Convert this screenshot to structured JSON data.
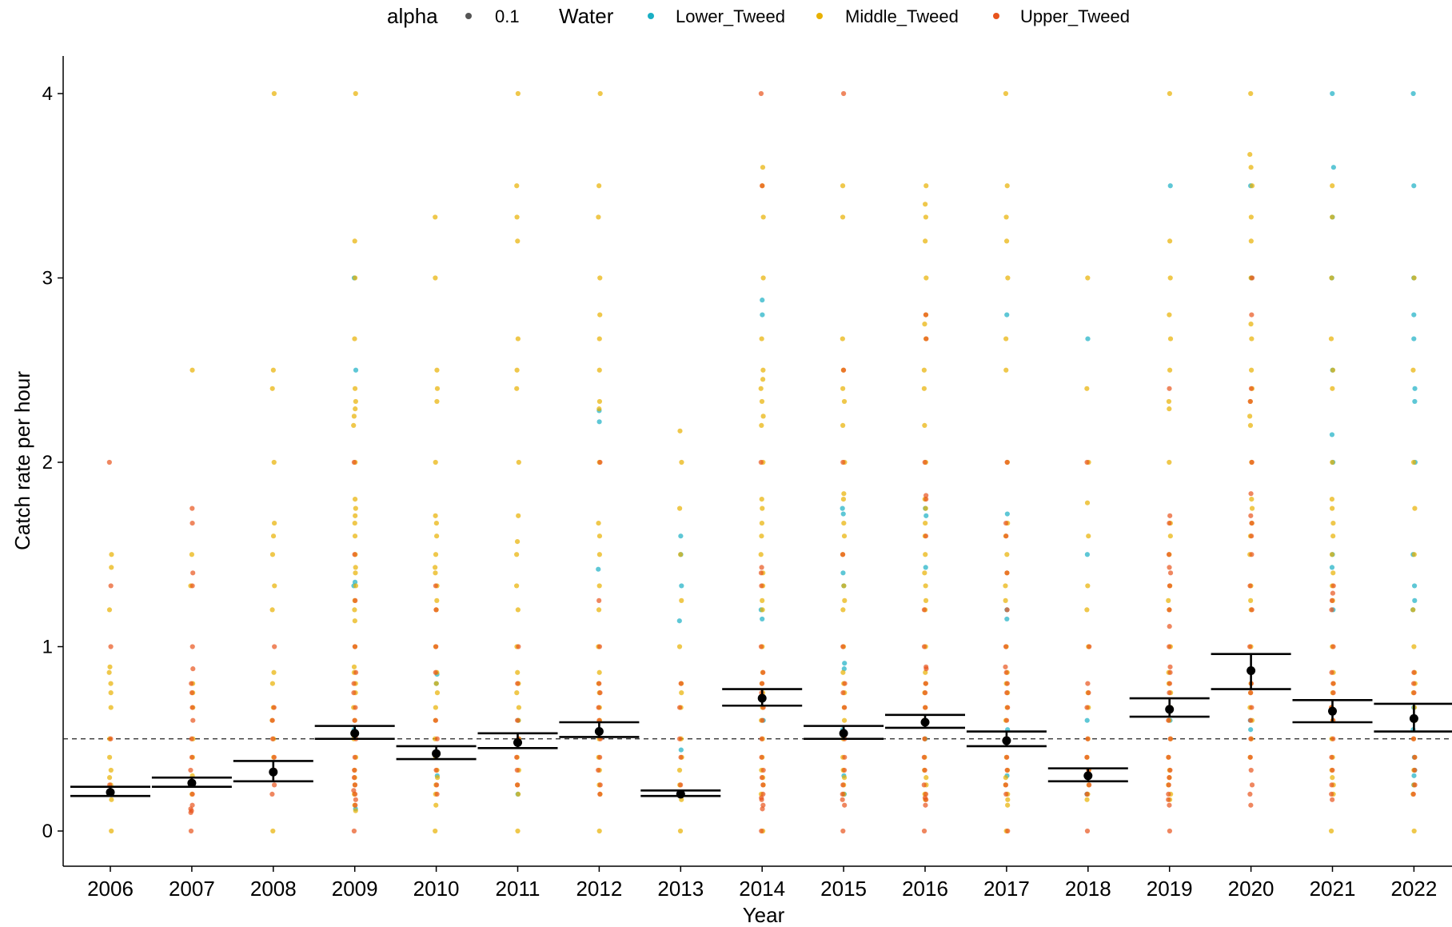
{
  "chart_data": {
    "type": "scatter",
    "title": "",
    "xlabel": "Year",
    "ylabel": "Catch rate per hour",
    "categories": [
      "2006",
      "2007",
      "2008",
      "2009",
      "2010",
      "2011",
      "2012",
      "2013",
      "2014",
      "2015",
      "2016",
      "2017",
      "2018",
      "2019",
      "2020",
      "2021",
      "2022"
    ],
    "y_ticks": [
      "0",
      "1",
      "2",
      "3",
      "4"
    ],
    "ylim": [
      -0.19,
      4.2
    ],
    "grid": false,
    "reference_line": {
      "y": 0.5,
      "style": "dashed"
    },
    "legend": {
      "position": "top",
      "alpha_title": "alpha",
      "alpha_value": "0.1",
      "water_title": "Water",
      "entries": [
        {
          "name": "Lower_Tweed",
          "color": "#1AAFC4"
        },
        {
          "name": "Middle_Tweed",
          "color": "#E8B100"
        },
        {
          "name": "Upper_Tweed",
          "color": "#E8541C"
        }
      ]
    },
    "summary": {
      "means": [
        0.21,
        0.26,
        0.32,
        0.53,
        0.42,
        0.48,
        0.54,
        0.2,
        0.72,
        0.53,
        0.59,
        0.49,
        0.3,
        0.66,
        0.87,
        0.65,
        0.61
      ],
      "lower": [
        0.19,
        0.24,
        0.27,
        0.5,
        0.39,
        0.45,
        0.51,
        0.19,
        0.68,
        0.5,
        0.56,
        0.46,
        0.27,
        0.62,
        0.77,
        0.59,
        0.54
      ],
      "upper": [
        0.24,
        0.29,
        0.38,
        0.57,
        0.46,
        0.53,
        0.59,
        0.22,
        0.77,
        0.57,
        0.63,
        0.54,
        0.34,
        0.72,
        0.96,
        0.71,
        0.69
      ]
    },
    "series": [
      {
        "name": "Lower_Tweed",
        "color": "#1AAFC4",
        "values": [
          [],
          [],
          [],
          [
            3.0,
            2.5,
            1.35,
            1.33,
            0.55,
            0.12
          ],
          [
            0.85,
            0.8,
            0.3
          ],
          [
            0.6,
            0.2
          ],
          [
            2.28,
            2.22,
            1.42,
            0.55
          ],
          [
            1.6,
            1.5,
            1.33,
            1.14,
            0.44,
            0.2
          ],
          [
            2.88,
            2.8,
            1.2,
            1.15,
            0.6
          ],
          [
            1.75,
            1.72,
            1.4,
            1.33,
            0.91,
            0.88,
            0.55,
            0.3,
            0.2
          ],
          [
            1.75,
            1.71,
            1.43,
            0.6,
            0.5
          ],
          [
            2.8,
            1.72,
            1.2,
            1.15,
            0.55,
            0.3
          ],
          [
            2.67,
            1.5,
            0.6,
            0.2
          ],
          [
            3.5,
            0.6
          ],
          [
            3.5,
            3.0,
            0.6,
            0.55
          ],
          [
            4.0,
            3.6,
            3.33,
            3.0,
            2.5,
            2.15,
            2.0,
            1.5,
            1.43,
            1.2
          ],
          [
            4.0,
            3.5,
            3.0,
            2.8,
            2.67,
            2.4,
            2.33,
            2.0,
            1.5,
            1.33,
            1.25,
            1.2,
            0.67,
            0.55,
            0.4,
            0.33,
            0.3,
            0.25
          ]
        ]
      },
      {
        "name": "Middle_Tweed",
        "color": "#E8B100",
        "values": [
          [
            1.5,
            1.43,
            1.2,
            0.89,
            0.86,
            0.8,
            0.75,
            0.67,
            0.5,
            0.4,
            0.33,
            0.29,
            0.25,
            0.2,
            0.17,
            0.0
          ],
          [
            2.5,
            1.5,
            1.33,
            0.8,
            0.75,
            0.67,
            0.5,
            0.4,
            0.3,
            0.25,
            0.2
          ],
          [
            4.0,
            2.5,
            2.4,
            2.0,
            1.67,
            1.6,
            1.5,
            1.33,
            1.2,
            0.86,
            0.8,
            0.67,
            0.6,
            0.5,
            0.4,
            0.33,
            0.0
          ],
          [
            4.0,
            3.2,
            3.0,
            2.67,
            2.4,
            2.33,
            2.29,
            2.25,
            2.2,
            2.0,
            1.8,
            1.75,
            1.71,
            1.67,
            1.6,
            1.5,
            1.43,
            1.4,
            1.33,
            1.25,
            1.2,
            1.14,
            1.0,
            0.89,
            0.86,
            0.8,
            0.75,
            0.67,
            0.6,
            0.5,
            0.4,
            0.33,
            0.29,
            0.25,
            0.2,
            0.14,
            0.11
          ],
          [
            3.33,
            3.0,
            2.5,
            2.4,
            2.33,
            2.0,
            1.71,
            1.67,
            1.6,
            1.5,
            1.43,
            1.4,
            1.33,
            1.25,
            1.2,
            1.0,
            0.86,
            0.8,
            0.75,
            0.67,
            0.6,
            0.5,
            0.4,
            0.33,
            0.29,
            0.25,
            0.2,
            0.14,
            0.0
          ],
          [
            4.0,
            3.5,
            3.33,
            3.2,
            2.67,
            2.5,
            2.4,
            2.0,
            1.71,
            1.57,
            1.5,
            1.33,
            1.2,
            1.0,
            0.86,
            0.8,
            0.75,
            0.67,
            0.6,
            0.5,
            0.4,
            0.33,
            0.25,
            0.2,
            0.0
          ],
          [
            4.0,
            3.5,
            3.33,
            3.0,
            2.8,
            2.67,
            2.5,
            2.33,
            2.29,
            2.0,
            1.67,
            1.6,
            1.5,
            1.33,
            1.2,
            1.0,
            0.86,
            0.8,
            0.75,
            0.67,
            0.6,
            0.5,
            0.4,
            0.33,
            0.25,
            0.2,
            0.0
          ],
          [
            2.17,
            2.0,
            1.75,
            1.5,
            1.25,
            1.0,
            0.8,
            0.75,
            0.67,
            0.5,
            0.4,
            0.33,
            0.25,
            0.2,
            0.17,
            0.0
          ],
          [
            3.6,
            3.5,
            3.33,
            3.0,
            2.67,
            2.5,
            2.45,
            2.4,
            2.33,
            2.25,
            2.2,
            2.0,
            1.8,
            1.75,
            1.67,
            1.6,
            1.5,
            1.4,
            1.33,
            1.25,
            1.2,
            1.0,
            0.86,
            0.8,
            0.75,
            0.67,
            0.6,
            0.5,
            0.4,
            0.33,
            0.29,
            0.25,
            0.2,
            0.0
          ],
          [
            3.5,
            3.33,
            2.67,
            2.5,
            2.4,
            2.33,
            2.2,
            2.0,
            1.83,
            1.8,
            1.67,
            1.6,
            1.5,
            1.33,
            1.25,
            1.2,
            1.0,
            0.86,
            0.8,
            0.75,
            0.67,
            0.6,
            0.5,
            0.4,
            0.33,
            0.29,
            0.25,
            0.2
          ],
          [
            3.5,
            3.4,
            3.33,
            3.2,
            3.0,
            2.8,
            2.75,
            2.67,
            2.5,
            2.4,
            2.2,
            2.0,
            1.8,
            1.75,
            1.67,
            1.6,
            1.5,
            1.4,
            1.33,
            1.25,
            1.2,
            1.0,
            0.86,
            0.8,
            0.75,
            0.67,
            0.6,
            0.5,
            0.4,
            0.33,
            0.29,
            0.25,
            0.2,
            0.17
          ],
          [
            4.0,
            3.5,
            3.33,
            3.2,
            3.0,
            2.67,
            2.5,
            2.0,
            1.67,
            1.6,
            1.5,
            1.4,
            1.33,
            1.25,
            1.0,
            0.86,
            0.8,
            0.75,
            0.67,
            0.6,
            0.5,
            0.4,
            0.33,
            0.29,
            0.25,
            0.2,
            0.17,
            0.14,
            0.0
          ],
          [
            3.0,
            2.4,
            2.0,
            1.78,
            1.6,
            1.33,
            1.2,
            1.0,
            0.75,
            0.67,
            0.5,
            0.4,
            0.33,
            0.29,
            0.25,
            0.2,
            0.17
          ],
          [
            4.0,
            3.2,
            3.0,
            2.8,
            2.67,
            2.5,
            2.33,
            2.29,
            2.0,
            1.67,
            1.6,
            1.5,
            1.33,
            1.25,
            1.2,
            1.0,
            0.86,
            0.8,
            0.75,
            0.67,
            0.6,
            0.5,
            0.4,
            0.33,
            0.29,
            0.25,
            0.2,
            0.17
          ],
          [
            4.0,
            3.67,
            3.6,
            3.5,
            3.33,
            3.2,
            3.0,
            2.75,
            2.67,
            2.5,
            2.4,
            2.33,
            2.25,
            2.2,
            2.0,
            1.8,
            1.75,
            1.67,
            1.6,
            1.5,
            1.33,
            1.25,
            1.2,
            1.0,
            0.86,
            0.8,
            0.75,
            0.67,
            0.6,
            0.5,
            0.4
          ],
          [
            3.5,
            3.33,
            3.0,
            2.67,
            2.5,
            2.4,
            2.0,
            1.8,
            1.75,
            1.67,
            1.6,
            1.5,
            1.4,
            1.33,
            1.25,
            1.0,
            0.86,
            0.8,
            0.75,
            0.67,
            0.6,
            0.5,
            0.4,
            0.33,
            0.29,
            0.25,
            0.2,
            0.0
          ],
          [
            3.0,
            2.5,
            2.0,
            1.75,
            1.5,
            1.2,
            1.0,
            0.86,
            0.8,
            0.75,
            0.67,
            0.6,
            0.5,
            0.4,
            0.33,
            0.25,
            0.2,
            0.0
          ]
        ]
      },
      {
        "name": "Upper_Tweed",
        "color": "#E8541C",
        "values": [
          [
            2.0,
            1.33,
            1.0,
            0.5,
            0.25
          ],
          [
            1.75,
            1.67,
            1.4,
            1.33,
            1.0,
            0.88,
            0.8,
            0.75,
            0.67,
            0.6,
            0.5,
            0.4,
            0.33,
            0.25,
            0.2,
            0.14,
            0.12,
            0.11,
            0.1,
            0.0
          ],
          [
            1.0,
            0.67,
            0.6,
            0.5,
            0.4,
            0.33,
            0.25,
            0.2
          ],
          [
            2.0,
            1.5,
            1.25,
            1.0,
            0.86,
            0.8,
            0.75,
            0.67,
            0.6,
            0.5,
            0.4,
            0.33,
            0.29,
            0.25,
            0.22,
            0.2,
            0.17,
            0.14,
            0.0
          ],
          [
            1.33,
            1.2,
            1.0,
            0.86,
            0.6,
            0.5,
            0.33,
            0.25,
            0.2
          ],
          [
            1.0,
            0.8,
            0.6,
            0.5,
            0.4,
            0.33,
            0.25
          ],
          [
            2.0,
            1.25,
            1.0,
            0.8,
            0.75,
            0.67,
            0.6,
            0.5,
            0.4,
            0.33,
            0.25,
            0.2
          ],
          [
            0.8,
            0.67,
            0.5,
            0.4,
            0.25
          ],
          [
            4.0,
            3.5,
            2.0,
            1.43,
            1.4,
            1.33,
            1.0,
            0.86,
            0.8,
            0.75,
            0.67,
            0.6,
            0.5,
            0.4,
            0.33,
            0.29,
            0.25,
            0.2,
            0.18,
            0.17,
            0.14,
            0.12,
            0.0
          ],
          [
            4.0,
            2.5,
            2.0,
            1.5,
            1.0,
            0.8,
            0.75,
            0.67,
            0.5,
            0.4,
            0.33,
            0.25,
            0.2,
            0.17,
            0.14,
            0.0
          ],
          [
            2.8,
            2.67,
            2.0,
            1.82,
            1.8,
            1.6,
            1.2,
            1.0,
            0.89,
            0.88,
            0.8,
            0.75,
            0.67,
            0.6,
            0.5,
            0.4,
            0.33,
            0.25,
            0.2,
            0.18,
            0.17,
            0.14,
            0.0
          ],
          [
            2.0,
            1.67,
            1.6,
            1.4,
            1.2,
            1.0,
            0.89,
            0.86,
            0.8,
            0.75,
            0.67,
            0.6,
            0.5,
            0.4,
            0.33,
            0.25,
            0.2,
            0.0
          ],
          [
            2.0,
            1.0,
            0.8,
            0.75,
            0.67,
            0.5,
            0.4,
            0.33,
            0.25,
            0.2,
            0.0
          ],
          [
            2.4,
            1.71,
            1.67,
            1.5,
            1.43,
            1.4,
            1.33,
            1.2,
            1.11,
            1.0,
            0.89,
            0.86,
            0.8,
            0.75,
            0.67,
            0.6,
            0.5,
            0.4,
            0.33,
            0.29,
            0.25,
            0.2,
            0.17,
            0.14,
            0.0
          ],
          [
            3.0,
            2.8,
            2.4,
            2.33,
            2.0,
            1.83,
            1.71,
            1.67,
            1.6,
            1.5,
            1.33,
            1.2,
            1.0,
            0.86,
            0.8,
            0.75,
            0.67,
            0.6,
            0.5,
            0.4,
            0.33,
            0.25,
            0.2,
            0.14
          ],
          [
            1.33,
            1.29,
            1.25,
            1.2,
            1.0,
            0.86,
            0.8,
            0.75,
            0.67,
            0.6,
            0.5,
            0.4,
            0.33,
            0.25,
            0.2,
            0.17
          ],
          [
            0.86,
            0.8,
            0.75,
            0.6,
            0.5,
            0.4,
            0.33,
            0.25,
            0.2
          ]
        ]
      }
    ]
  }
}
